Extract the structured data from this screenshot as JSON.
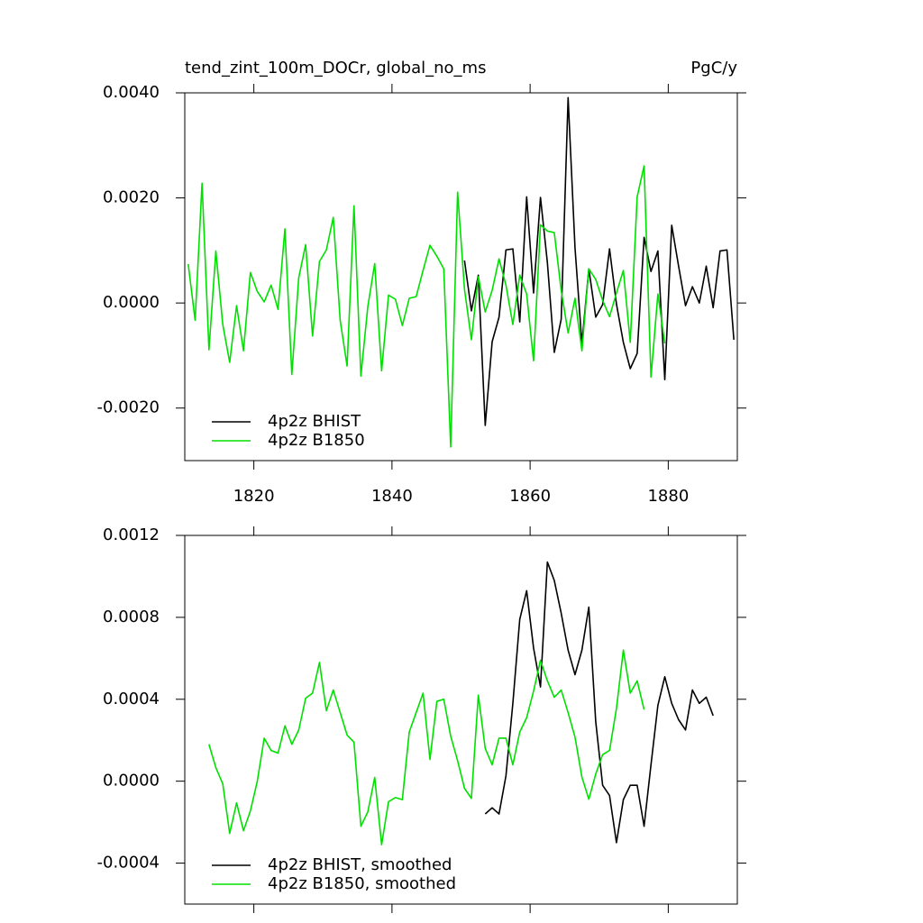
{
  "chart_data": [
    {
      "type": "line",
      "title": "tend_zint_100m_DOCr, global_no_ms",
      "units": "PgC/y",
      "x": [
        1810.5,
        1811.5,
        1812.5,
        1813.5,
        1814.5,
        1815.5,
        1816.5,
        1817.5,
        1818.5,
        1819.5,
        1820.5,
        1821.5,
        1822.5,
        1823.5,
        1824.5,
        1825.5,
        1826.5,
        1827.5,
        1828.5,
        1829.5,
        1830.5,
        1831.5,
        1832.5,
        1833.5,
        1834.5,
        1835.5,
        1836.5,
        1837.5,
        1838.5,
        1839.5,
        1840.5,
        1841.5,
        1842.5,
        1843.5,
        1844.5,
        1845.5,
        1846.5,
        1847.5,
        1848.5,
        1849.5,
        1850.5,
        1851.5,
        1852.5,
        1853.5,
        1854.5,
        1855.5,
        1856.5,
        1857.5,
        1858.5,
        1859.5,
        1860.5,
        1861.5,
        1862.5,
        1863.5,
        1864.5,
        1865.5,
        1866.5,
        1867.5,
        1868.5,
        1869.5,
        1870.5,
        1871.5,
        1872.5,
        1873.5,
        1874.5,
        1875.5,
        1876.5,
        1877.5,
        1878.5,
        1879.5,
        1880.5,
        1881.5,
        1882.5,
        1883.5,
        1884.5,
        1885.5,
        1886.5,
        1887.5,
        1888.5,
        1889.5
      ],
      "series": [
        {
          "name": "4p2z BHIST",
          "color": "#000000",
          "values": [
            null,
            null,
            null,
            null,
            null,
            null,
            null,
            null,
            null,
            null,
            null,
            null,
            null,
            null,
            null,
            null,
            null,
            null,
            null,
            null,
            null,
            null,
            null,
            null,
            null,
            null,
            null,
            null,
            null,
            null,
            null,
            null,
            null,
            null,
            null,
            null,
            null,
            null,
            null,
            null,
            0.00081,
            -0.00015,
            0.00053,
            -0.00233,
            -0.00074,
            -0.00027,
            0.00101,
            0.00103,
            -0.00036,
            0.00202,
            0.00019,
            0.00201,
            0.00077,
            -0.00094,
            -0.00031,
            0.00391,
            0.00105,
            -0.00077,
            0.00065,
            -0.00027,
            -3e-05,
            0.00103,
            -2e-05,
            -0.00075,
            -0.00125,
            -0.00096,
            0.00125,
            0.0006,
            0.00099,
            -0.00146,
            0.00148,
            0.0007,
            -5e-05,
            0.00031,
            0,
            0.0007,
            -9e-05,
            0.00099,
            0.00101,
            -0.0007
          ]
        },
        {
          "name": "4p2z B1850",
          "color": "#00e000",
          "values": [
            0.00074,
            -0.00033,
            0.00228,
            -0.00089,
            0.00099,
            -0.00041,
            -0.00113,
            -5e-05,
            -0.00091,
            0.00058,
            0.00022,
            2e-05,
            0.00034,
            -0.00012,
            0.00141,
            -0.00136,
            0.00048,
            0.00111,
            -0.00063,
            0.00079,
            0.00101,
            0.00163,
            -0.00033,
            -0.0012,
            0.00185,
            -0.00139,
            -7e-05,
            0.00075,
            -0.00129,
            0.00015,
            7e-05,
            -0.00043,
            9e-05,
            0.00012,
            0.00062,
            0.0011,
            0.00089,
            0.00065,
            -0.00274,
            0.00211,
            0.00026,
            -0.0007,
            0.0005,
            -0.00017,
            0.00024,
            0.00084,
            0.00034,
            -0.00041,
            0.00053,
            0.00017,
            -0.0011,
            0.00149,
            0.00137,
            0.00134,
            0.00024,
            -0.00057,
            9e-05,
            -0.00091,
            0.00065,
            0.00045,
            5e-05,
            -0.00026,
            0.00019,
            0.00062,
            -0.00075,
            0.00202,
            0.00261,
            -0.00141,
            0.00017,
            -0.00077,
            null,
            null,
            null,
            null,
            null,
            null,
            null,
            null,
            null,
            null
          ]
        }
      ],
      "xlim": [
        1810,
        1890
      ],
      "xticks": [
        1820,
        1840,
        1860,
        1880
      ],
      "ylim": [
        -0.003,
        0.004
      ],
      "yticks": [
        {
          "value": -0.002,
          "label": "-0.0020"
        },
        {
          "value": 0,
          "label": "0.0000"
        },
        {
          "value": 0.002,
          "label": "0.0020"
        },
        {
          "value": 0.004,
          "label": "0.0040"
        }
      ],
      "legend": "lower left"
    },
    {
      "type": "line",
      "x": [
        1813.5,
        1814.5,
        1815.5,
        1816.5,
        1817.5,
        1818.5,
        1819.5,
        1820.5,
        1821.5,
        1822.5,
        1823.5,
        1824.5,
        1825.5,
        1826.5,
        1827.5,
        1828.5,
        1829.5,
        1830.5,
        1831.5,
        1832.5,
        1833.5,
        1834.5,
        1835.5,
        1836.5,
        1837.5,
        1838.5,
        1839.5,
        1840.5,
        1841.5,
        1842.5,
        1843.5,
        1844.5,
        1845.5,
        1846.5,
        1847.5,
        1848.5,
        1849.5,
        1850.5,
        1851.5,
        1852.5,
        1853.5,
        1854.5,
        1855.5,
        1856.5,
        1857.5,
        1858.5,
        1859.5,
        1860.5,
        1861.5,
        1862.5,
        1863.5,
        1864.5,
        1865.5,
        1866.5,
        1867.5,
        1868.5,
        1869.5,
        1870.5,
        1871.5,
        1872.5,
        1873.5,
        1874.5,
        1875.5,
        1876.5,
        1877.5,
        1878.5,
        1879.5,
        1880.5,
        1881.5,
        1882.5,
        1883.5,
        1884.5,
        1885.5,
        1886.5
      ],
      "series": [
        {
          "name": "4p2z BHIST, smoothed",
          "color": "#000000",
          "values": [
            null,
            null,
            null,
            null,
            null,
            null,
            null,
            null,
            null,
            null,
            null,
            null,
            null,
            null,
            null,
            null,
            null,
            null,
            null,
            null,
            null,
            null,
            null,
            null,
            null,
            null,
            null,
            null,
            null,
            null,
            null,
            null,
            null,
            null,
            null,
            null,
            null,
            null,
            null,
            null,
            -0.00016,
            -0.00013,
            -0.00016,
            2.6e-05,
            0.00038,
            0.00079,
            0.00093,
            0.00065,
            0.00046,
            0.00107,
            0.00098,
            0.00082,
            0.00064,
            0.00052,
            0.00064,
            0.00085,
            0.00029,
            -2e-05,
            -7e-05,
            -0.0003,
            -9e-05,
            -2e-05,
            -2e-05,
            -0.00022,
            8e-05,
            0.00037,
            0.00051,
            0.00038,
            0.0003,
            0.00025,
            0.000445,
            0.00038,
            0.00041,
            0.00032
          ]
        },
        {
          "name": "4p2z B1850, smoothed",
          "color": "#00e000",
          "values": [
            0.00018,
            6.6e-05,
            -1.3e-05,
            -0.000255,
            -0.000106,
            -0.000242,
            -0.000145,
            0,
            0.00021,
            0.00015,
            0.000137,
            0.00027,
            0.00018,
            0.00025,
            0.000405,
            0.00043,
            0.00058,
            0.000344,
            0.000445,
            0.000335,
            0.000225,
            0.00019,
            -0.00022,
            -0.00015,
            1.8e-05,
            -0.00031,
            -0.0001,
            -8e-05,
            -9e-05,
            0.00024,
            0.000335,
            0.00043,
            0.000106,
            0.00039,
            0.0004,
            0.00022,
            0.0001,
            -3.5e-05,
            -8.4e-05,
            0.00042,
            0.00016,
            8e-05,
            0.00021,
            0.00021,
            8e-05,
            0.00024,
            0.00031,
            0.00044,
            0.00059,
            0.00049,
            0.00041,
            0.000445,
            0.000335,
            0.000215,
            2e-05,
            -8.8e-05,
            3.5e-05,
            0.00013,
            0.00015,
            0.000355,
            0.00064,
            0.00043,
            0.00049,
            0.00035,
            null,
            null,
            null,
            null,
            null,
            null,
            null,
            null,
            null,
            null
          ]
        }
      ],
      "xlim": [
        1810,
        1890
      ],
      "xticks": [
        1820,
        1840,
        1860,
        1880
      ],
      "xtick_labels": false,
      "ylim": [
        -0.0006,
        0.0012
      ],
      "yticks": [
        {
          "value": -0.0004,
          "label": "-0.0004"
        },
        {
          "value": 0,
          "label": "0.0000"
        },
        {
          "value": 0.0004,
          "label": "0.0004"
        },
        {
          "value": 0.0008,
          "label": "0.0008"
        },
        {
          "value": 0.0012,
          "label": "0.0012"
        }
      ],
      "legend": "lower left"
    }
  ]
}
